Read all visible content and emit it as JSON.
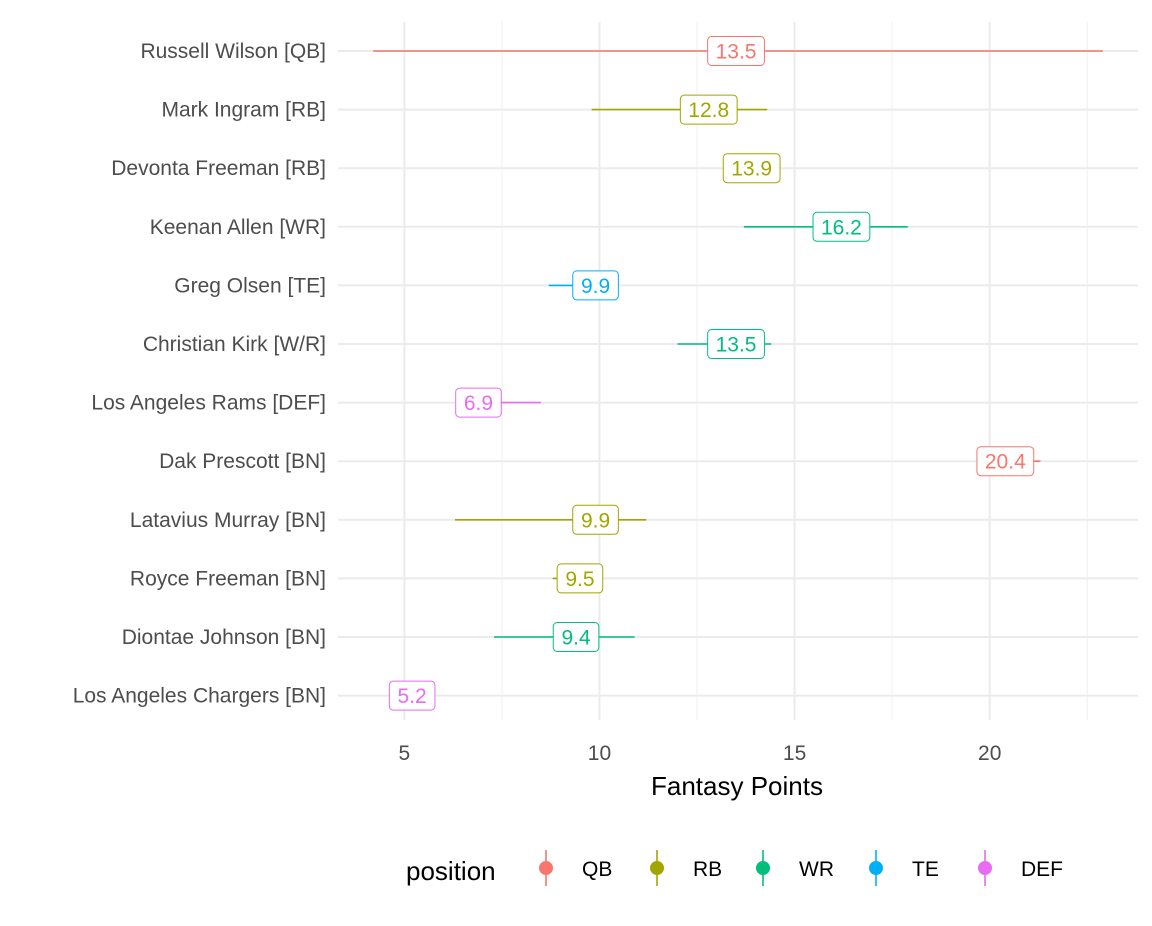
{
  "chart_data": {
    "type": "scatter",
    "xlabel": "Fantasy Points",
    "xlim": [
      3.3,
      23.8
    ],
    "x_ticks": [
      5,
      10,
      15,
      20
    ],
    "x_tick_labels": [
      "5",
      "10",
      "15",
      "20"
    ],
    "grid": true,
    "legend": {
      "title": "position",
      "placement": "bottom",
      "entries": [
        {
          "label": "QB",
          "color": "#F8766D"
        },
        {
          "label": "RB",
          "color": "#A3A500"
        },
        {
          "label": "WR",
          "color": "#00BF7D"
        },
        {
          "label": "TE",
          "color": "#00B0F6"
        },
        {
          "label": "DEF",
          "color": "#E76BF3"
        }
      ]
    },
    "players": [
      {
        "name": "Russell Wilson [QB]",
        "position": "QB",
        "value": 13.5,
        "label": "13.5",
        "low": 4.2,
        "high": 22.9
      },
      {
        "name": "Mark Ingram [RB]",
        "position": "RB",
        "value": 12.8,
        "label": "12.8",
        "low": 9.8,
        "high": 14.3
      },
      {
        "name": "Devonta Freeman [RB]",
        "position": "RB",
        "value": 13.9,
        "label": "13.9",
        "low": 13.9,
        "high": 13.9
      },
      {
        "name": "Keenan Allen [WR]",
        "position": "WR",
        "value": 16.2,
        "label": "16.2",
        "low": 13.7,
        "high": 17.9
      },
      {
        "name": "Greg Olsen [TE]",
        "position": "TE",
        "value": 9.9,
        "label": "9.9",
        "low": 8.7,
        "high": 9.9
      },
      {
        "name": "Christian Kirk [W/R]",
        "position": "WR",
        "value": 13.5,
        "label": "13.5",
        "low": 12.0,
        "high": 14.4
      },
      {
        "name": "Los Angeles Rams [DEF]",
        "position": "DEF",
        "value": 6.9,
        "label": "6.9",
        "low": 6.9,
        "high": 8.5
      },
      {
        "name": "Dak Prescott [BN]",
        "position": "QB",
        "value": 20.4,
        "label": "20.4",
        "low": 20.4,
        "high": 21.3
      },
      {
        "name": "Latavius Murray [BN]",
        "position": "RB",
        "value": 9.9,
        "label": "9.9",
        "low": 6.3,
        "high": 11.2
      },
      {
        "name": "Royce Freeman [BN]",
        "position": "RB",
        "value": 9.5,
        "label": "9.5",
        "low": 8.8,
        "high": 9.5
      },
      {
        "name": "Diontae Johnson [BN]",
        "position": "WR",
        "value": 9.4,
        "label": "9.4",
        "low": 7.3,
        "high": 10.9
      },
      {
        "name": "Los Angeles Chargers [BN]",
        "position": "DEF",
        "value": 5.2,
        "label": "5.2",
        "low": 4.6,
        "high": 5.2
      }
    ]
  }
}
